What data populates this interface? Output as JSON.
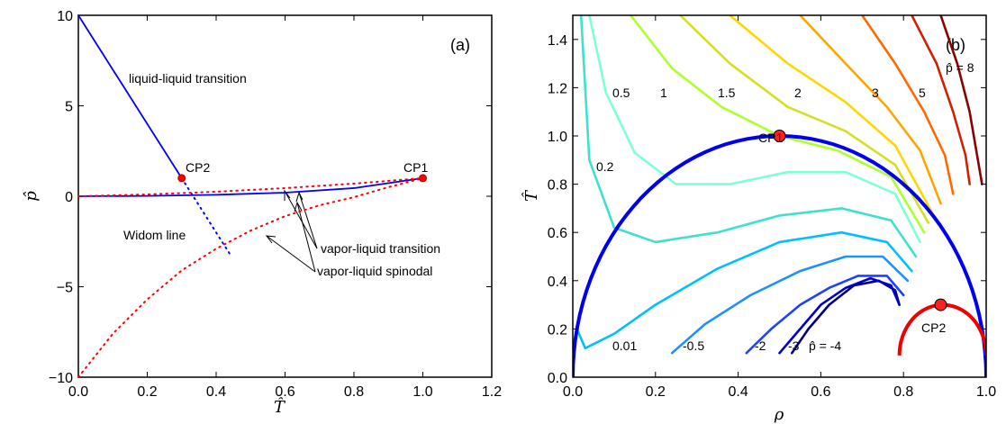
{
  "chart_data": [
    {
      "panel": "(a)",
      "type": "line",
      "xlabel": "T̂",
      "ylabel": "p̂",
      "xlim": [
        0.0,
        1.2
      ],
      "ylim": [
        -10,
        10
      ],
      "xticks": [
        "0.0",
        "0.2",
        "0.4",
        "0.6",
        "0.8",
        "1.0",
        "1.2"
      ],
      "yticks": [
        "10",
        "5",
        "0",
        "−5",
        "−10"
      ],
      "series": [
        {
          "style": "blue solid",
          "x": [
            0.0,
            0.3
          ],
          "y": [
            10.0,
            1.0
          ]
        },
        {
          "style": "blue solid",
          "x": [
            0.0,
            0.2,
            0.4,
            0.6,
            0.8,
            1.0
          ],
          "y": [
            0.0,
            0.02,
            0.08,
            0.2,
            0.45,
            1.0
          ]
        },
        {
          "style": "blue dotted",
          "x": [
            0.3,
            0.44
          ],
          "y": [
            1.0,
            -3.2
          ]
        },
        {
          "style": "red dotted",
          "x": [
            0.0,
            0.2,
            0.4,
            0.6,
            0.8,
            1.0
          ],
          "y": [
            0.0,
            0.1,
            0.25,
            0.45,
            0.7,
            1.0
          ]
        },
        {
          "style": "red dotted",
          "x": [
            0.0,
            0.1,
            0.2,
            0.3,
            0.4,
            0.5,
            0.6,
            0.7,
            0.8,
            0.9,
            1.0
          ],
          "y": [
            -10.0,
            -7.6,
            -5.7,
            -4.1,
            -2.9,
            -1.9,
            -1.1,
            -0.5,
            -0.05,
            0.5,
            1.0
          ]
        }
      ],
      "points": [
        {
          "label": "CP2",
          "x": 0.3,
          "y": 1.0
        },
        {
          "label": "CP1",
          "x": 1.0,
          "y": 1.0
        }
      ],
      "annotations": {
        "llt": "liquid-liquid transition",
        "widom": "Widom line",
        "vlt": "vapor-liquid transition",
        "vls": "vapor-liquid spinodal"
      }
    },
    {
      "panel": "(b)",
      "type": "line",
      "xlabel": "ρ",
      "ylabel": "T̂",
      "xlim": [
        0.0,
        1.0
      ],
      "ylim": [
        0.0,
        1.5
      ],
      "xticks": [
        "0.0",
        "0.2",
        "0.4",
        "0.6",
        "0.8",
        "1.0"
      ],
      "yticks": [
        "1.4",
        "1.2",
        "1.0",
        "0.8",
        "0.6",
        "0.4",
        "0.2",
        "0.0"
      ],
      "points": [
        {
          "label": "CP1",
          "x": 0.5,
          "y": 1.0
        },
        {
          "label": "CP2",
          "x": 0.89,
          "y": 0.3
        }
      ],
      "isobar_labels": [
        "0.5",
        "1",
        "1.5",
        "2",
        "3",
        "5",
        "p̂ = 8",
        "0.2",
        "0.01",
        "-0.5",
        "-2",
        "-3",
        "p̂ = -4"
      ],
      "series": [
        {
          "name": "-4",
          "color": "#00008b",
          "x": [
            0.53,
            0.57,
            0.62,
            0.68,
            0.74,
            0.78,
            0.79
          ],
          "y": [
            0.1,
            0.2,
            0.3,
            0.38,
            0.4,
            0.36,
            0.3
          ]
        },
        {
          "name": "-3",
          "color": "#0000cd",
          "x": [
            0.5,
            0.55,
            0.6,
            0.66,
            0.72,
            0.77,
            0.79
          ],
          "y": [
            0.1,
            0.2,
            0.3,
            0.37,
            0.41,
            0.38,
            0.3
          ]
        },
        {
          "name": "-2",
          "color": "#1e40ff",
          "x": [
            0.42,
            0.48,
            0.55,
            0.62,
            0.69,
            0.76,
            0.8
          ],
          "y": [
            0.1,
            0.2,
            0.3,
            0.37,
            0.42,
            0.42,
            0.34
          ]
        },
        {
          "name": "-0.5",
          "color": "#1e90ff",
          "x": [
            0.24,
            0.32,
            0.43,
            0.55,
            0.66,
            0.75,
            0.81
          ],
          "y": [
            0.1,
            0.22,
            0.34,
            0.44,
            0.5,
            0.5,
            0.4
          ]
        },
        {
          "name": "0.01",
          "color": "#00bfff",
          "x": [
            0.01,
            0.03,
            0.1,
            0.2,
            0.35,
            0.5,
            0.65,
            0.76,
            0.82
          ],
          "y": [
            0.2,
            0.12,
            0.18,
            0.3,
            0.45,
            0.56,
            0.6,
            0.56,
            0.44
          ]
        },
        {
          "name": "0.2",
          "color": "#40e0d0",
          "x": [
            0.02,
            0.04,
            0.1,
            0.2,
            0.35,
            0.5,
            0.65,
            0.77,
            0.83
          ],
          "y": [
            1.5,
            0.9,
            0.62,
            0.56,
            0.6,
            0.67,
            0.7,
            0.65,
            0.5
          ]
        },
        {
          "name": "0.5",
          "color": "#7fffd4",
          "x": [
            0.04,
            0.08,
            0.15,
            0.25,
            0.38,
            0.52,
            0.66,
            0.78,
            0.84
          ],
          "y": [
            1.5,
            1.18,
            0.93,
            0.8,
            0.8,
            0.85,
            0.85,
            0.76,
            0.56
          ]
        },
        {
          "name": "1",
          "color": "#adff2f",
          "x": [
            0.14,
            0.24,
            0.36,
            0.5,
            0.64,
            0.77,
            0.85
          ],
          "y": [
            1.5,
            1.28,
            1.12,
            1.0,
            0.94,
            0.83,
            0.6
          ]
        },
        {
          "name": "1.5",
          "color": "#d4e020",
          "x": [
            0.26,
            0.38,
            0.52,
            0.66,
            0.78,
            0.86
          ],
          "y": [
            1.5,
            1.3,
            1.12,
            1.02,
            0.88,
            0.64
          ]
        },
        {
          "name": "2",
          "color": "#ffd700",
          "x": [
            0.38,
            0.52,
            0.66,
            0.78,
            0.87
          ],
          "y": [
            1.5,
            1.3,
            1.14,
            0.96,
            0.68
          ]
        },
        {
          "name": "3",
          "color": "#ffa500",
          "x": [
            0.55,
            0.66,
            0.76,
            0.84,
            0.89
          ],
          "y": [
            1.5,
            1.3,
            1.12,
            0.94,
            0.72
          ]
        },
        {
          "name": "5",
          "color": "#ff6a00",
          "x": [
            0.7,
            0.78,
            0.85,
            0.9,
            0.92
          ],
          "y": [
            1.5,
            1.3,
            1.1,
            0.92,
            0.76
          ]
        },
        {
          "name": "8",
          "color": "#cc2200",
          "x": [
            0.82,
            0.88,
            0.92,
            0.95,
            0.96
          ],
          "y": [
            1.5,
            1.3,
            1.1,
            0.92,
            0.8
          ]
        },
        {
          "name": "8b",
          "color": "#8b0000",
          "x": [
            0.89,
            0.93,
            0.96,
            0.98,
            0.99
          ],
          "y": [
            1.5,
            1.3,
            1.1,
            0.9,
            0.8
          ]
        }
      ]
    }
  ]
}
